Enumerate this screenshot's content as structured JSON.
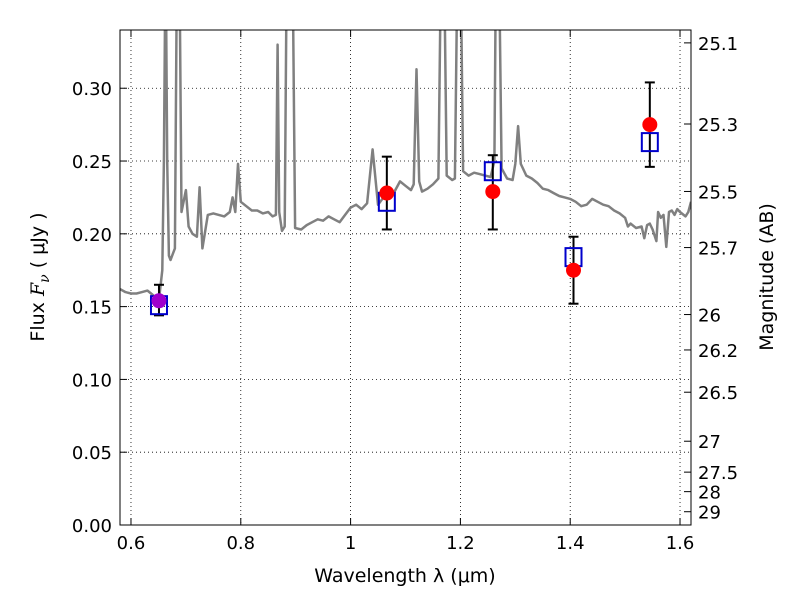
{
  "chart_data": {
    "type": "scatter",
    "xlabel": "Wavelength  λ (μm)",
    "ylabel_left": {
      "prefix": "Flux  ",
      "math": "F",
      "sub": "ν",
      "suffix": "  ( μJy )"
    },
    "ylabel_right": "Magnitude (AB)",
    "xlim": [
      0.58,
      1.62
    ],
    "ylim": [
      0.0,
      0.34
    ],
    "xticks": [
      0.6,
      0.8,
      1.0,
      1.2,
      1.4,
      1.6
    ],
    "xtick_labels": [
      "0.6",
      "0.8",
      "1",
      "1.2",
      "1.4",
      "1.6"
    ],
    "yticks": [
      0.0,
      0.05,
      0.1,
      0.15,
      0.2,
      0.25,
      0.3
    ],
    "ytick_labels": [
      "0.00",
      "0.05",
      "0.10",
      "0.15",
      "0.20",
      "0.25",
      "0.30"
    ],
    "right_ticks_mag": [
      25.1,
      25.3,
      25.5,
      25.7,
      26,
      26.2,
      26.5,
      27,
      27.5,
      28,
      29
    ],
    "right_tick_labels": [
      "25.1",
      "25.3",
      "25.5",
      "25.7",
      "26",
      "26.2",
      "26.5",
      "27",
      "27.5",
      "28",
      "29"
    ],
    "grid": true,
    "observed": {
      "x": [
        0.651,
        1.066,
        1.259,
        1.406,
        1.545
      ],
      "y": [
        0.154,
        0.228,
        0.229,
        0.175,
        0.275
      ],
      "yerr_low": [
        0.01,
        0.025,
        0.026,
        0.023,
        0.029
      ],
      "yerr_high": [
        0.011,
        0.025,
        0.025,
        0.023,
        0.029
      ],
      "color": "#ff0000"
    },
    "model_bands": {
      "x": [
        0.651,
        1.066,
        1.259,
        1.406,
        1.545
      ],
      "y": [
        0.151,
        0.222,
        0.243,
        0.184,
        0.263
      ],
      "color": "#0000cc"
    },
    "spectrum": {
      "color": "#808080",
      "points": [
        [
          0.58,
          0.162
        ],
        [
          0.59,
          0.16
        ],
        [
          0.6,
          0.159
        ],
        [
          0.61,
          0.159
        ],
        [
          0.62,
          0.16
        ],
        [
          0.63,
          0.161
        ],
        [
          0.64,
          0.158
        ],
        [
          0.645,
          0.156
        ],
        [
          0.652,
          0.158
        ],
        [
          0.657,
          0.175
        ],
        [
          0.66,
          0.25
        ],
        [
          0.663,
          0.4
        ],
        [
          0.666,
          0.25
        ],
        [
          0.669,
          0.185
        ],
        [
          0.672,
          0.182
        ],
        [
          0.676,
          0.186
        ],
        [
          0.68,
          0.19
        ],
        [
          0.684,
          0.4
        ],
        [
          0.688,
          0.4
        ],
        [
          0.692,
          0.215
        ],
        [
          0.7,
          0.23
        ],
        [
          0.705,
          0.205
        ],
        [
          0.712,
          0.2
        ],
        [
          0.72,
          0.198
        ],
        [
          0.725,
          0.232
        ],
        [
          0.73,
          0.19
        ],
        [
          0.74,
          0.213
        ],
        [
          0.75,
          0.214
        ],
        [
          0.76,
          0.213
        ],
        [
          0.77,
          0.212
        ],
        [
          0.78,
          0.215
        ],
        [
          0.785,
          0.225
        ],
        [
          0.79,
          0.215
        ],
        [
          0.795,
          0.248
        ],
        [
          0.8,
          0.222
        ],
        [
          0.81,
          0.219
        ],
        [
          0.82,
          0.216
        ],
        [
          0.83,
          0.216
        ],
        [
          0.84,
          0.214
        ],
        [
          0.85,
          0.215
        ],
        [
          0.858,
          0.212
        ],
        [
          0.864,
          0.213
        ],
        [
          0.867,
          0.33
        ],
        [
          0.87,
          0.215
        ],
        [
          0.875,
          0.202
        ],
        [
          0.88,
          0.205
        ],
        [
          0.884,
          0.4
        ],
        [
          0.889,
          0.4
        ],
        [
          0.894,
          0.4
        ],
        [
          0.899,
          0.204
        ],
        [
          0.91,
          0.203
        ],
        [
          0.92,
          0.206
        ],
        [
          0.93,
          0.208
        ],
        [
          0.94,
          0.21
        ],
        [
          0.95,
          0.209
        ],
        [
          0.96,
          0.212
        ],
        [
          0.97,
          0.21
        ],
        [
          0.98,
          0.208
        ],
        [
          0.99,
          0.213
        ],
        [
          1.0,
          0.218
        ],
        [
          1.01,
          0.22
        ],
        [
          1.02,
          0.217
        ],
        [
          1.03,
          0.221
        ],
        [
          1.04,
          0.258
        ],
        [
          1.05,
          0.22
        ],
        [
          1.06,
          0.225
        ],
        [
          1.07,
          0.227
        ],
        [
          1.08,
          0.229
        ],
        [
          1.09,
          0.236
        ],
        [
          1.1,
          0.233
        ],
        [
          1.11,
          0.23
        ],
        [
          1.115,
          0.234
        ],
        [
          1.12,
          0.313
        ],
        [
          1.125,
          0.236
        ],
        [
          1.13,
          0.229
        ],
        [
          1.14,
          0.231
        ],
        [
          1.15,
          0.234
        ],
        [
          1.16,
          0.238
        ],
        [
          1.165,
          0.4
        ],
        [
          1.17,
          0.4
        ],
        [
          1.175,
          0.24
        ],
        [
          1.185,
          0.237
        ],
        [
          1.19,
          0.238
        ],
        [
          1.195,
          0.4
        ],
        [
          1.2,
          0.4
        ],
        [
          1.205,
          0.243
        ],
        [
          1.215,
          0.24
        ],
        [
          1.225,
          0.242
        ],
        [
          1.235,
          0.241
        ],
        [
          1.245,
          0.24
        ],
        [
          1.255,
          0.239
        ],
        [
          1.262,
          0.25
        ],
        [
          1.265,
          0.4
        ],
        [
          1.27,
          0.4
        ],
        [
          1.275,
          0.245
        ],
        [
          1.285,
          0.238
        ],
        [
          1.295,
          0.237
        ],
        [
          1.3,
          0.248
        ],
        [
          1.305,
          0.274
        ],
        [
          1.31,
          0.248
        ],
        [
          1.32,
          0.24
        ],
        [
          1.33,
          0.238
        ],
        [
          1.34,
          0.235
        ],
        [
          1.35,
          0.231
        ],
        [
          1.36,
          0.23
        ],
        [
          1.37,
          0.228
        ],
        [
          1.38,
          0.226
        ],
        [
          1.39,
          0.225
        ],
        [
          1.4,
          0.224
        ],
        [
          1.41,
          0.222
        ],
        [
          1.42,
          0.219
        ],
        [
          1.43,
          0.22
        ],
        [
          1.44,
          0.224
        ],
        [
          1.45,
          0.222
        ],
        [
          1.46,
          0.22
        ],
        [
          1.47,
          0.219
        ],
        [
          1.48,
          0.216
        ],
        [
          1.49,
          0.214
        ],
        [
          1.5,
          0.211
        ],
        [
          1.505,
          0.205
        ],
        [
          1.51,
          0.207
        ],
        [
          1.52,
          0.204
        ],
        [
          1.53,
          0.205
        ],
        [
          1.535,
          0.197
        ],
        [
          1.54,
          0.206
        ],
        [
          1.545,
          0.207
        ],
        [
          1.55,
          0.203
        ],
        [
          1.557,
          0.195
        ],
        [
          1.56,
          0.215
        ],
        [
          1.565,
          0.211
        ],
        [
          1.57,
          0.213
        ],
        [
          1.575,
          0.191
        ],
        [
          1.58,
          0.215
        ],
        [
          1.585,
          0.216
        ],
        [
          1.59,
          0.213
        ],
        [
          1.595,
          0.217
        ],
        [
          1.6,
          0.215
        ],
        [
          1.61,
          0.212
        ],
        [
          1.615,
          0.215
        ],
        [
          1.62,
          0.222
        ]
      ]
    }
  }
}
